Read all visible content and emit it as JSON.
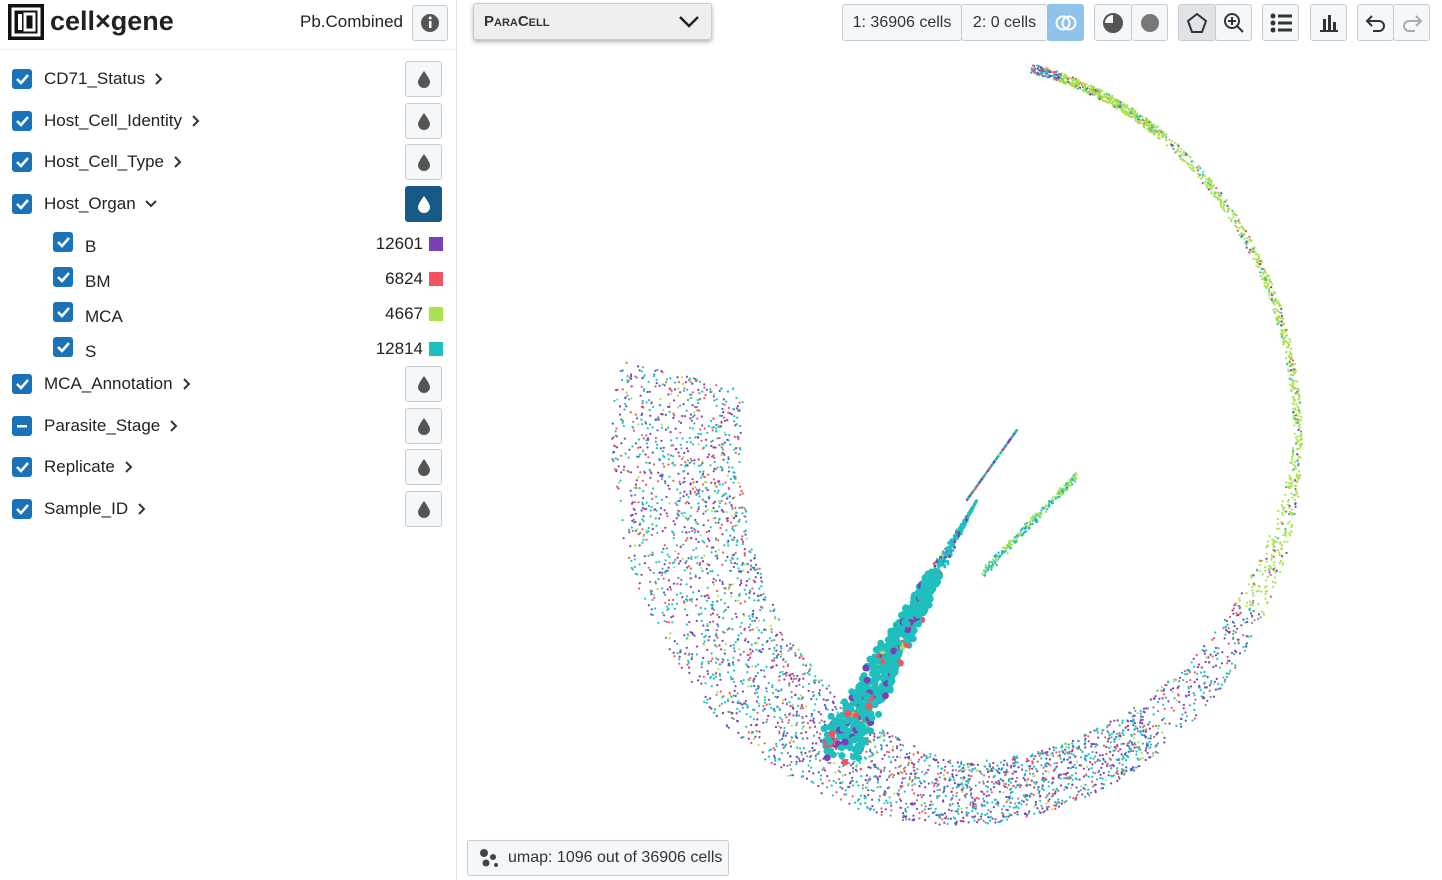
{
  "header": {
    "logo": "cell×gene",
    "dataset": "Pb.Combined"
  },
  "toolbar": {
    "app_menu": "ParaCell",
    "cell_set_1": "1: 36906 cells",
    "cell_set_2": "2: 0 cells"
  },
  "categories": [
    {
      "name": "CD71_Status",
      "state": "checked",
      "expanded": false
    },
    {
      "name": "Host_Cell_Identity",
      "state": "checked",
      "expanded": false
    },
    {
      "name": "Host_Cell_Type",
      "state": "checked",
      "expanded": false
    },
    {
      "name": "Host_Organ",
      "state": "checked",
      "expanded": true,
      "values": [
        {
          "label": "B",
          "count": 12601,
          "color": "#7b40b6"
        },
        {
          "label": "BM",
          "count": 6824,
          "color": "#f2555d"
        },
        {
          "label": "MCA",
          "count": 4667,
          "color": "#a8e34f"
        },
        {
          "label": "S",
          "count": 12814,
          "color": "#1fbfbf"
        }
      ]
    },
    {
      "name": "MCA_Annotation",
      "state": "checked",
      "expanded": false
    },
    {
      "name": "Parasite_Stage",
      "state": "indeterminate",
      "expanded": false
    },
    {
      "name": "Replicate",
      "state": "checked",
      "expanded": false
    },
    {
      "name": "Sample_ID",
      "state": "checked",
      "expanded": false
    }
  ],
  "embedding": {
    "label": "umap: 1096 out of 36906 cells"
  }
}
